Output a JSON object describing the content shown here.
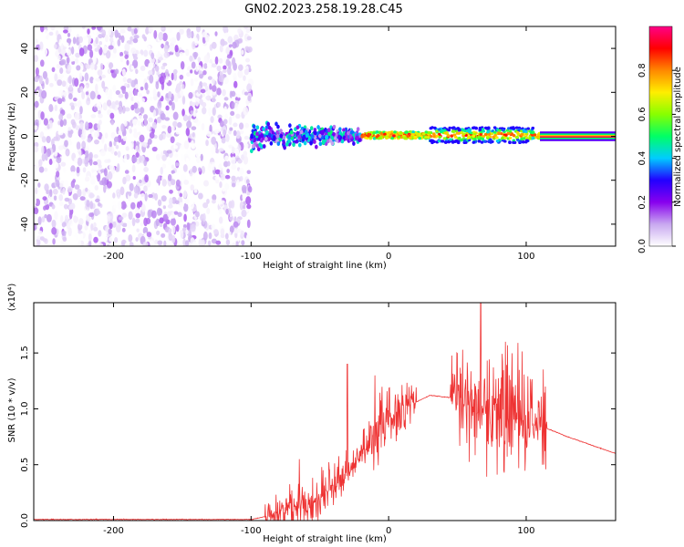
{
  "title": "GN02.2023.258.19.28.C45",
  "chart_data": [
    {
      "type": "heatmap",
      "xlabel": "Height of straight line (km)",
      "ylabel": "Frequency (Hz)",
      "xlim": [
        -258,
        165
      ],
      "ylim": [
        -50,
        50
      ],
      "xticks": [
        -200,
        -100,
        0,
        100
      ],
      "yticks": [
        -40,
        -20,
        0,
        20,
        40
      ],
      "colorbar": {
        "label": "Normalized spectral amplitude",
        "range": [
          0,
          1
        ],
        "ticks": [
          0.0,
          0.2,
          0.4,
          0.6,
          0.8
        ],
        "tick_labels": [
          "0.0",
          "0.2",
          "0.4",
          "0.6",
          "0.8"
        ],
        "colormap": [
          "#ffffff",
          "#c8a8f0",
          "#8800ee",
          "#2200ff",
          "#00ccff",
          "#00ff66",
          "#88ff00",
          "#ffee00",
          "#ff8800",
          "#ff0000",
          "#ff0088"
        ]
      },
      "regions": [
        {
          "x": [
            -258,
            -100
          ],
          "description_level": "low",
          "amplitude_range": [
            0.0,
            0.15
          ]
        },
        {
          "x": [
            -100,
            -20
          ],
          "freq_spread_hz": 8,
          "amplitude_range": [
            0.1,
            0.5
          ]
        },
        {
          "x": [
            -20,
            110
          ],
          "freq_center_hz": 0.5,
          "amplitude_range": [
            0.3,
            1.0
          ]
        },
        {
          "x": [
            110,
            165
          ],
          "freq_center_hz": 0,
          "amplitude_range": [
            0.8,
            1.0
          ]
        }
      ]
    },
    {
      "type": "line",
      "xlabel": "Height of straight line (km)",
      "ylabel": "SNR (10 * v/v)",
      "y_multiplier": "(x10⁴)",
      "xlim": [
        -258,
        165
      ],
      "ylim": [
        0,
        1.95
      ],
      "xticks": [
        -200,
        -100,
        0,
        100
      ],
      "yticks": [
        0.0,
        0.5,
        1.0,
        1.5
      ],
      "ytick_labels": [
        "0.0",
        "0.5",
        "1.0",
        "1.5"
      ],
      "color": "#ee3333",
      "baseline_points": [
        {
          "x": -258,
          "y": 0.01
        },
        {
          "x": -100,
          "y": 0.01
        },
        {
          "x": -80,
          "y": 0.06
        },
        {
          "x": -50,
          "y": 0.2
        },
        {
          "x": -30,
          "y": 0.4
        },
        {
          "x": -10,
          "y": 0.75
        },
        {
          "x": 10,
          "y": 1.0
        },
        {
          "x": 30,
          "y": 1.12
        },
        {
          "x": 45,
          "y": 1.1
        },
        {
          "x": 60,
          "y": 1.0
        },
        {
          "x": 80,
          "y": 0.95
        },
        {
          "x": 110,
          "y": 0.85
        },
        {
          "x": 130,
          "y": 0.75
        },
        {
          "x": 165,
          "y": 0.6
        }
      ],
      "noise_envelope": [
        {
          "x": [
            -90,
            -20
          ],
          "amplitude": 0.35
        },
        {
          "x": [
            -20,
            20
          ],
          "amplitude": 0.45
        },
        {
          "x": [
            45,
            115
          ],
          "amplitude": 0.8
        }
      ],
      "peaks": [
        {
          "x": -65,
          "y": 0.55
        },
        {
          "x": -30,
          "y": 1.4
        },
        {
          "x": -10,
          "y": 1.3
        },
        {
          "x": 67,
          "y": 1.95
        },
        {
          "x": 85,
          "y": 1.6
        }
      ]
    }
  ]
}
